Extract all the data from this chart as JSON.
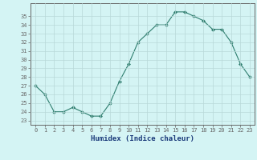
{
  "x": [
    0,
    1,
    2,
    3,
    4,
    5,
    6,
    7,
    8,
    9,
    10,
    11,
    12,
    13,
    14,
    15,
    16,
    17,
    18,
    19,
    20,
    21,
    22,
    23
  ],
  "y": [
    27.0,
    26.0,
    24.0,
    24.0,
    24.5,
    24.0,
    23.5,
    23.5,
    25.0,
    27.5,
    29.5,
    32.0,
    33.0,
    34.0,
    34.0,
    35.5,
    35.5,
    35.0,
    34.5,
    33.5,
    33.5,
    32.0,
    29.5,
    28.0
  ],
  "line_color": "#2e7d6e",
  "marker": "D",
  "marker_size": 2.0,
  "line_width": 0.8,
  "xlabel": "Humidex (Indice chaleur)",
  "xlabel_fontsize": 6.5,
  "xlim": [
    -0.5,
    23.5
  ],
  "ylim": [
    22.5,
    36.5
  ],
  "yticks": [
    23,
    24,
    25,
    26,
    27,
    28,
    29,
    30,
    31,
    32,
    33,
    34,
    35
  ],
  "xticks": [
    0,
    1,
    2,
    3,
    4,
    5,
    6,
    7,
    8,
    9,
    10,
    11,
    12,
    13,
    14,
    15,
    16,
    17,
    18,
    19,
    20,
    21,
    22,
    23
  ],
  "tick_fontsize": 5.0,
  "bg_color": "#d4f4f4",
  "grid_color": "#b8d8d8",
  "axes_color": "#666666",
  "xlabel_color": "#1a3a7a"
}
